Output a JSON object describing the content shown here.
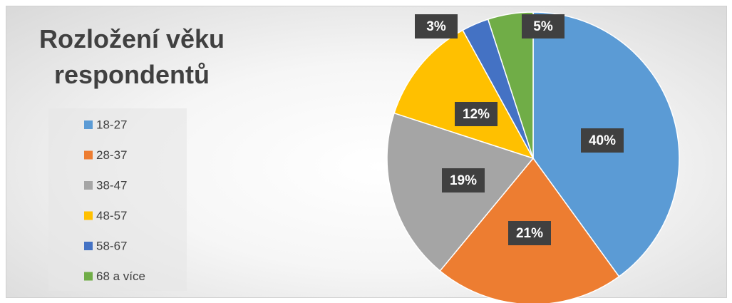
{
  "chart_data": {
    "type": "pie",
    "title": "Rozložení věku respondentů",
    "categories": [
      "18-27",
      "28-37",
      "38-47",
      "48-57",
      "58-67",
      "68 a více"
    ],
    "values": [
      40,
      21,
      19,
      12,
      3,
      5
    ],
    "value_labels": [
      "40%",
      "21%",
      "19%",
      "12%",
      "3%",
      "5%"
    ],
    "colors": [
      "#5b9bd5",
      "#ed7d31",
      "#a5a5a5",
      "#ffc000",
      "#4472c4",
      "#70ad47"
    ],
    "legend": "left"
  }
}
